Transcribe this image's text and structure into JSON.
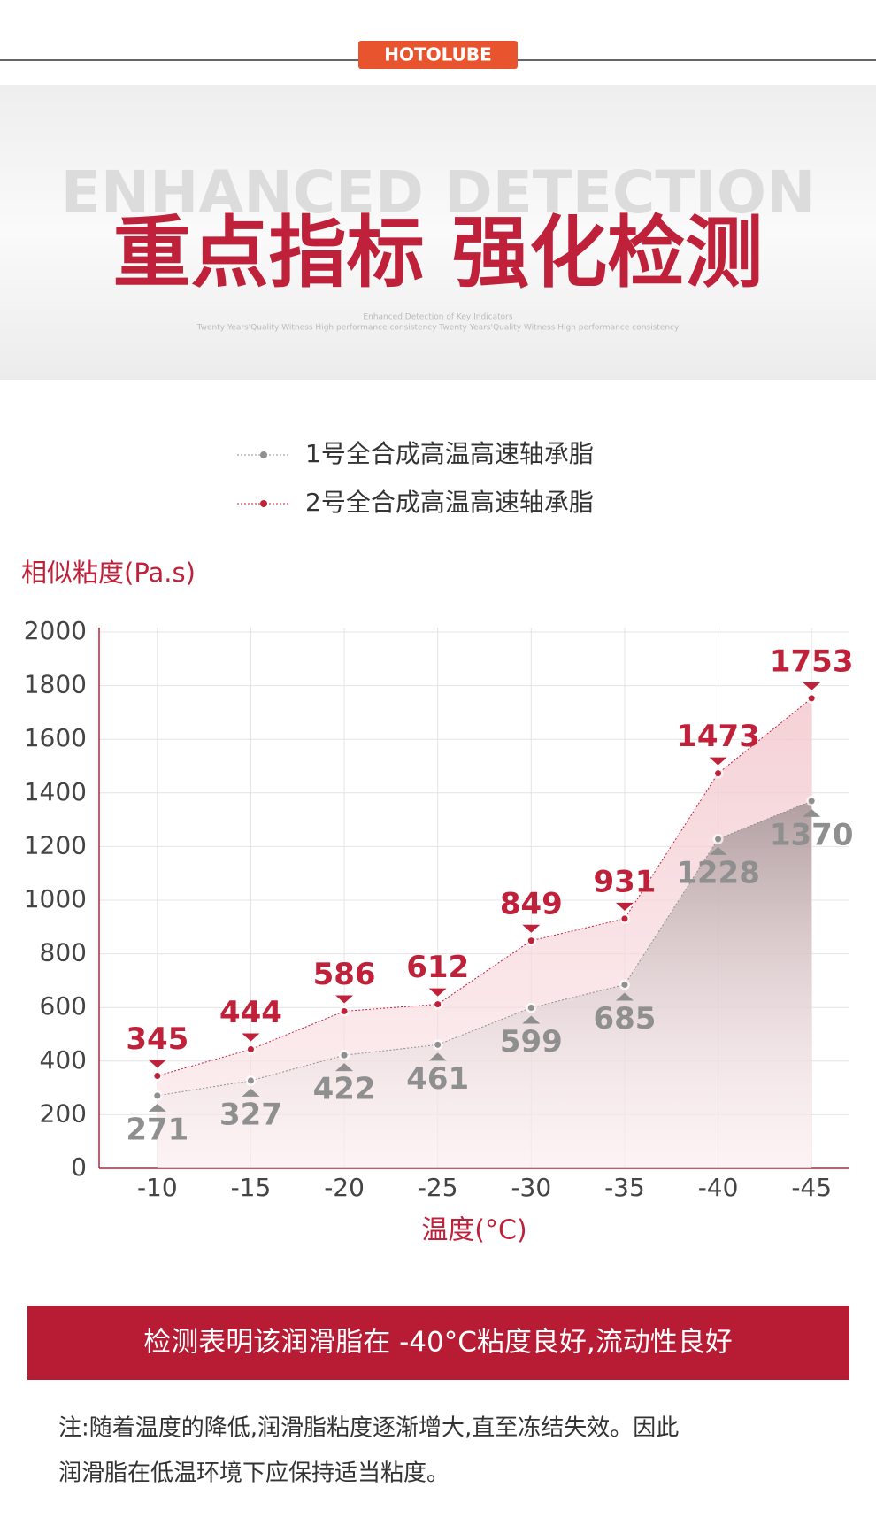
{
  "header": {
    "brand": "HOTOLUBE"
  },
  "banner": {
    "background_text": "ENHANCED DETECTION",
    "title": "重点指标 强化检测",
    "subtitle": "Enhanced Detection of Key Indicators",
    "tagline": "Twenty Years'Quality Witness High performance consistency Twenty Years'Quality Witness High performance consistency"
  },
  "chart_data": {
    "type": "line",
    "y_label": "相似粘度(Pa.s)",
    "x_label": "温度(°C)",
    "categories": [
      "-10",
      "-15",
      "-20",
      "-25",
      "-30",
      "-35",
      "-40",
      "-45"
    ],
    "series": [
      {
        "name": "1号全合成高温高速轴承脂",
        "color": "#8f8f8f",
        "values": [
          271,
          327,
          422,
          461,
          599,
          685,
          1228,
          1370
        ]
      },
      {
        "name": "2号全合成高温高速轴承脂",
        "color": "#c0213a",
        "values": [
          345,
          444,
          586,
          612,
          849,
          931,
          1473,
          1753
        ]
      }
    ],
    "ylim": [
      0,
      2000
    ],
    "yticks": [
      0,
      200,
      400,
      600,
      800,
      1000,
      1200,
      1400,
      1600,
      1800,
      2000
    ],
    "grid": true
  },
  "conclusion": "检测表明该润滑脂在 -40°C粘度良好,流动性良好",
  "note": [
    "注:随着温度的降低,润滑脂粘度逐渐增大,直至冻结失效。因此",
    "润滑脂在低温环境下应保持适当粘度。"
  ]
}
